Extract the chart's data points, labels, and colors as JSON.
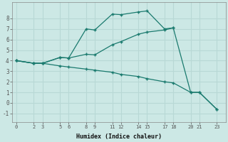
{
  "xlabel": "Humidex (Indice chaleur)",
  "bg_color": "#cce8e5",
  "line_color": "#1a7a6e",
  "grid_color": "#b8d8d5",
  "line1_x": [
    0,
    2,
    3,
    5,
    6,
    8,
    9,
    11,
    12,
    14,
    15,
    17,
    18
  ],
  "line1_y": [
    4.0,
    3.75,
    3.75,
    4.3,
    4.25,
    7.0,
    6.9,
    8.4,
    8.35,
    8.6,
    8.7,
    7.0,
    7.1
  ],
  "line2_x": [
    0,
    2,
    3,
    5,
    6,
    8,
    9,
    11,
    12,
    14,
    15,
    17,
    18,
    20,
    21,
    23
  ],
  "line2_y": [
    4.0,
    3.75,
    3.75,
    4.3,
    4.25,
    4.6,
    4.55,
    5.5,
    5.8,
    6.5,
    6.7,
    6.9,
    7.1,
    1.0,
    1.0,
    -0.6
  ],
  "line3_x": [
    0,
    2,
    3,
    5,
    6,
    8,
    9,
    11,
    12,
    14,
    15,
    17,
    18,
    20,
    21,
    23
  ],
  "line3_y": [
    4.0,
    3.75,
    3.75,
    3.5,
    3.4,
    3.2,
    3.1,
    2.9,
    2.7,
    2.5,
    2.3,
    2.0,
    1.9,
    1.0,
    1.0,
    -0.6
  ],
  "xlim": [
    -0.5,
    24
  ],
  "ylim": [
    -1.8,
    9.5
  ],
  "xticks": [
    0,
    2,
    3,
    5,
    6,
    8,
    9,
    11,
    12,
    14,
    15,
    17,
    18,
    20,
    21,
    23
  ],
  "yticks": [
    -1,
    0,
    1,
    2,
    3,
    4,
    5,
    6,
    7,
    8
  ]
}
